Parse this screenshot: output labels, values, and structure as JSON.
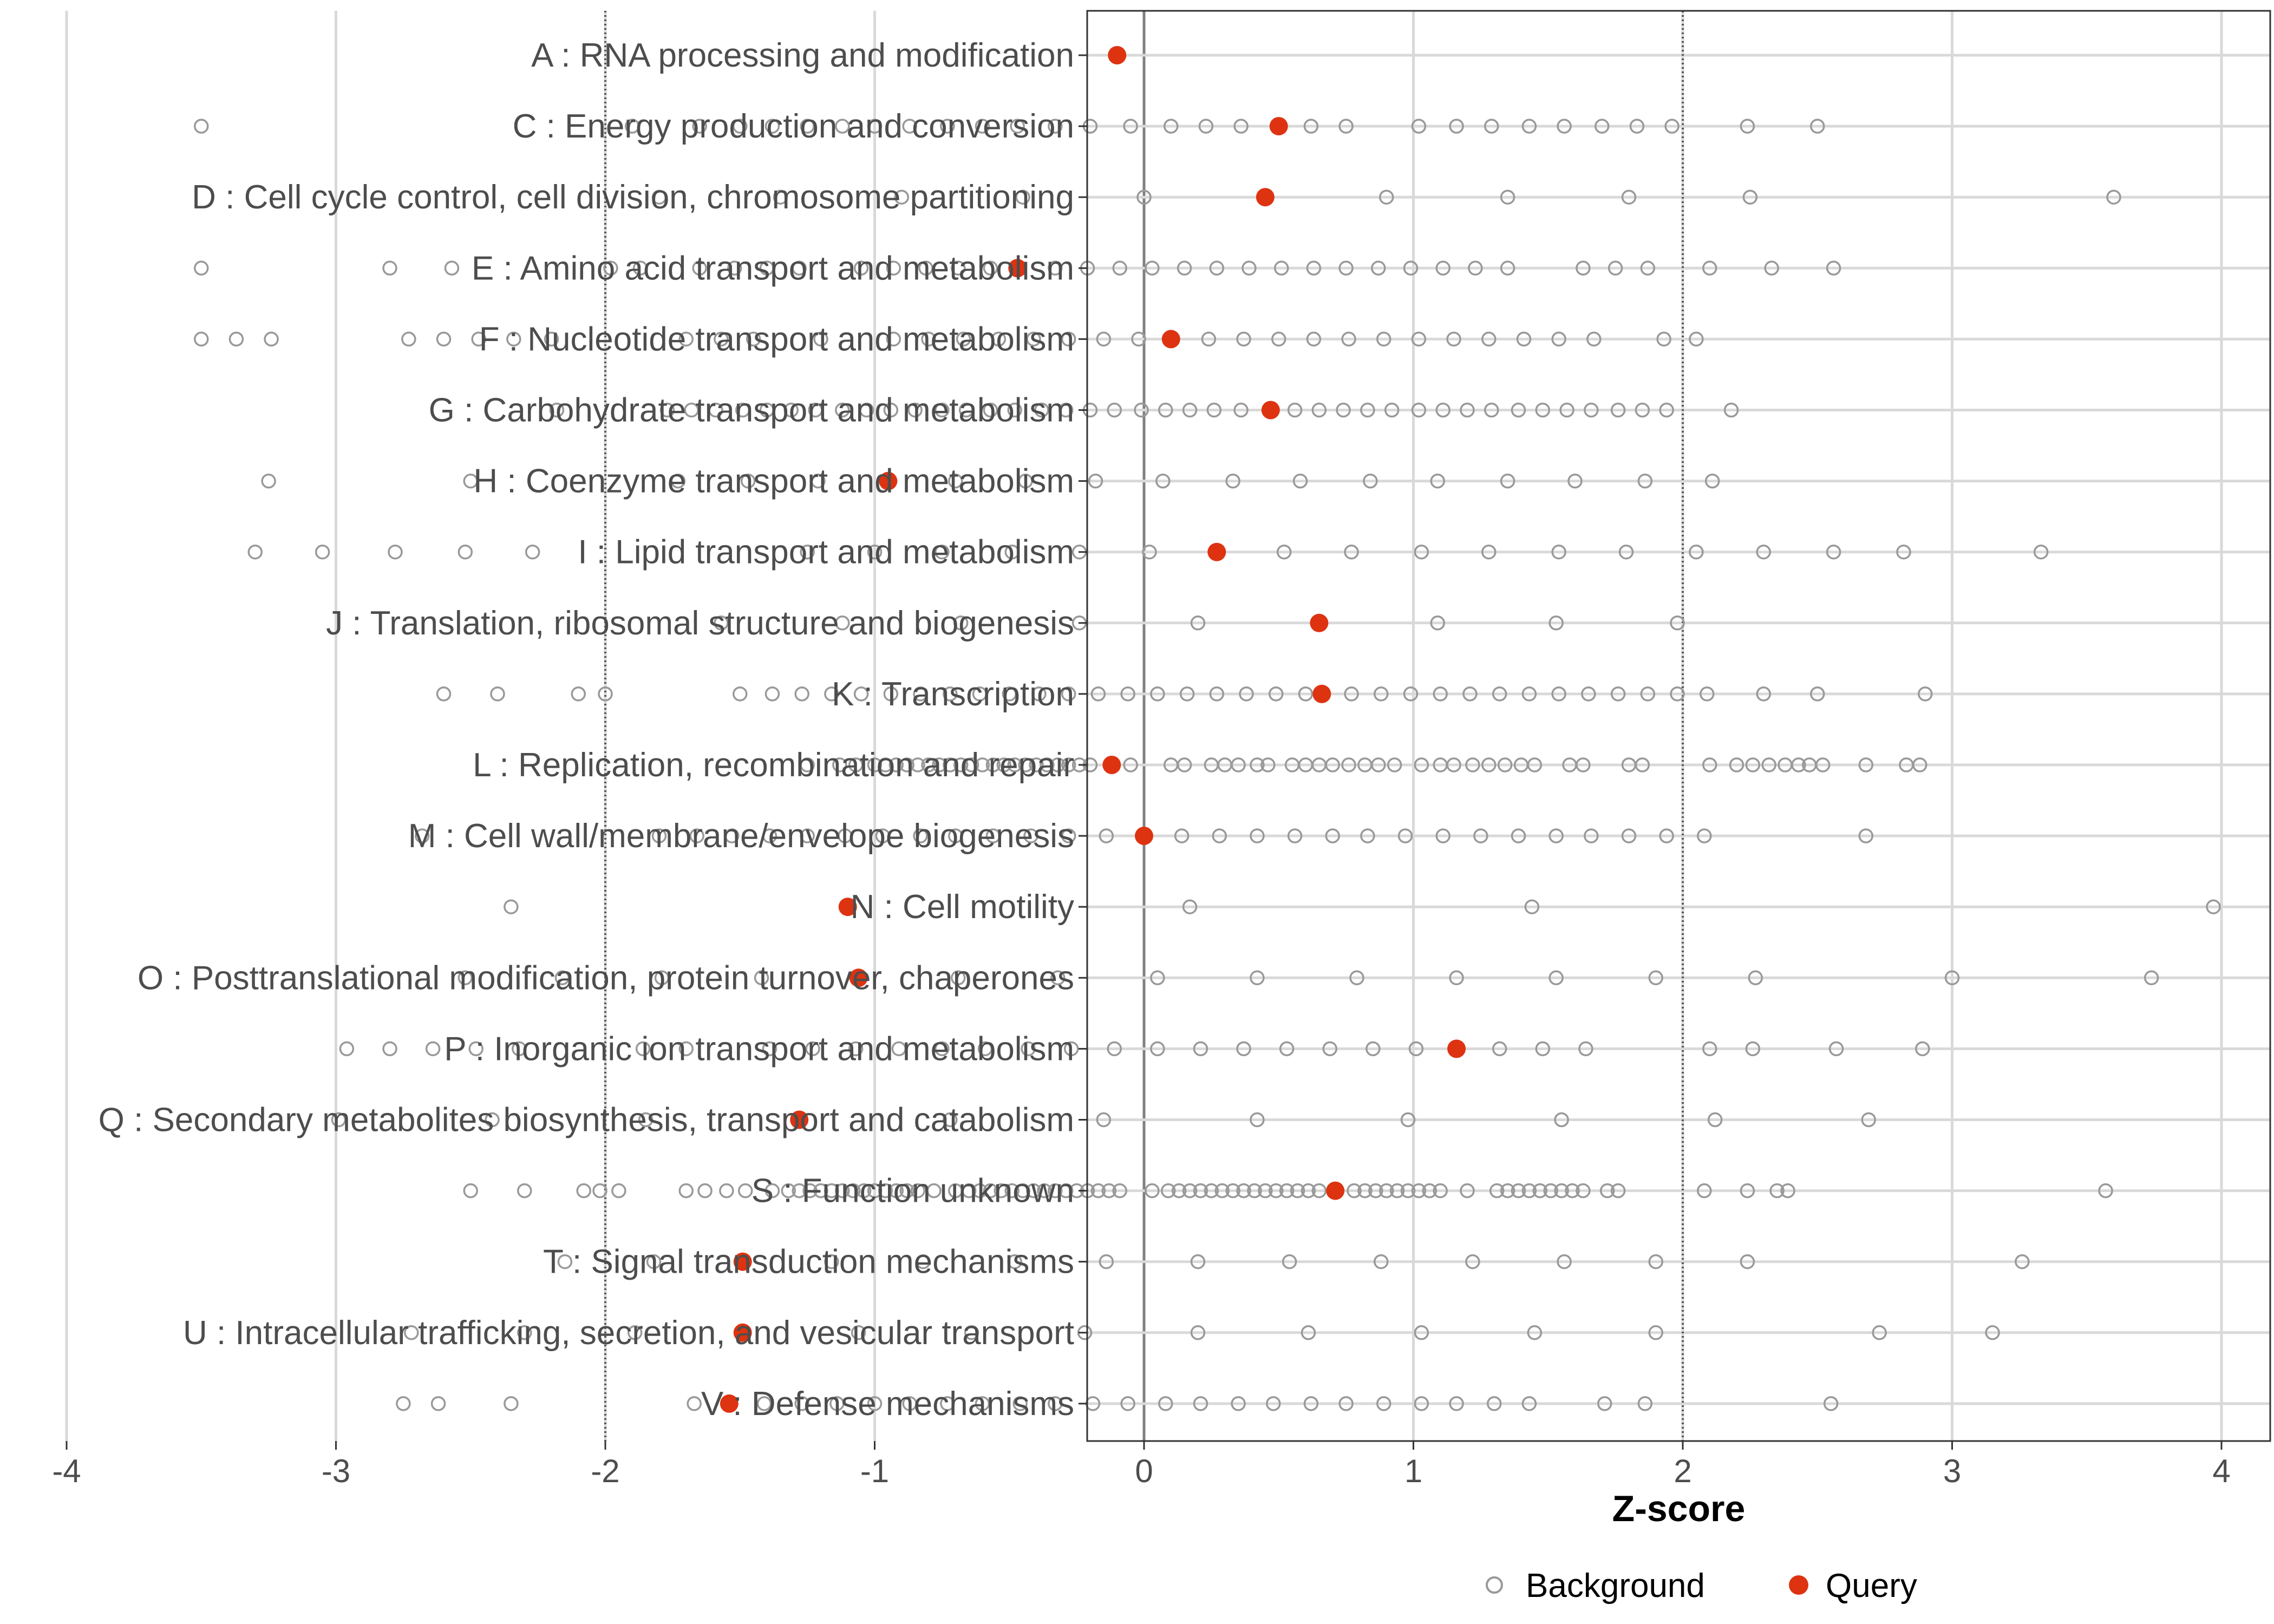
{
  "chart_data": {
    "type": "scatter",
    "title": "",
    "xlabel": "Z-score",
    "ylabel": "",
    "xlim": [
      -4.4,
      4.4
    ],
    "xticks": [
      -4,
      -3,
      -2,
      -1,
      0,
      1,
      2,
      3,
      4
    ],
    "vlines": [
      -2,
      2
    ],
    "grid": true,
    "legend_position": "bottom",
    "legend": [
      {
        "name": "Background",
        "style": "open-circle",
        "color": "#999999"
      },
      {
        "name": "Query",
        "style": "filled-circle",
        "color": "#dd3311"
      }
    ],
    "categories": [
      {
        "label": "A : RNA processing and modification",
        "query": -0.1,
        "background": []
      },
      {
        "label": "C : Energy production and conversion",
        "query": 0.5,
        "background": [
          -3.5,
          -1.9,
          -1.65,
          -1.5,
          -1.38,
          -1.25,
          -1.12,
          -1.0,
          -0.87,
          -0.73,
          -0.6,
          -0.47,
          -0.33,
          -0.2,
          -0.05,
          0.1,
          0.23,
          0.36,
          0.62,
          0.75,
          1.02,
          1.16,
          1.29,
          1.43,
          1.56,
          1.7,
          1.83,
          1.96,
          2.24,
          2.5
        ]
      },
      {
        "label": "D : Cell cycle control, cell division, chromosome partitioning",
        "query": 0.45,
        "background": [
          -1.8,
          -1.35,
          -0.9,
          -0.45,
          0.0,
          0.9,
          1.35,
          1.8,
          2.25,
          3.6
        ]
      },
      {
        "label": "E : Amino acid transport and metabolism",
        "query": -0.47,
        "background": [
          -3.5,
          -2.8,
          -2.57,
          -1.98,
          -1.87,
          -1.65,
          -1.52,
          -1.4,
          -1.28,
          -1.05,
          -0.93,
          -0.81,
          -0.69,
          -0.57,
          -0.33,
          -0.21,
          -0.09,
          0.03,
          0.15,
          0.27,
          0.39,
          0.51,
          0.63,
          0.75,
          0.87,
          0.99,
          1.11,
          1.23,
          1.35,
          1.63,
          1.75,
          1.87,
          2.1,
          2.33,
          2.56
        ]
      },
      {
        "label": "F : Nucleotide transport and metabolism",
        "query": 0.1,
        "background": [
          -3.5,
          -3.37,
          -3.24,
          -2.73,
          -2.6,
          -2.47,
          -2.34,
          -2.2,
          -1.7,
          -1.57,
          -1.45,
          -1.2,
          -0.93,
          -0.8,
          -0.67,
          -0.54,
          -0.41,
          -0.28,
          -0.15,
          -0.02,
          0.24,
          0.37,
          0.5,
          0.63,
          0.76,
          0.89,
          1.02,
          1.15,
          1.28,
          1.41,
          1.54,
          1.67,
          1.93,
          2.05
        ]
      },
      {
        "label": "G : Carbohydrate transport and metabolism",
        "query": 0.47,
        "background": [
          -2.18,
          -1.77,
          -1.68,
          -1.59,
          -1.49,
          -1.4,
          -1.31,
          -1.22,
          -1.12,
          -1.03,
          -0.94,
          -0.85,
          -0.75,
          -0.66,
          -0.57,
          -0.48,
          -0.38,
          -0.29,
          -0.2,
          -0.11,
          -0.01,
          0.08,
          0.17,
          0.26,
          0.36,
          0.56,
          0.65,
          0.74,
          0.83,
          0.92,
          1.02,
          1.11,
          1.2,
          1.29,
          1.39,
          1.48,
          1.57,
          1.66,
          1.76,
          1.85,
          1.94,
          2.18
        ]
      },
      {
        "label": "H : Coenzyme transport and metabolism",
        "query": -0.95,
        "background": [
          -3.25,
          -2.5,
          -1.73,
          -1.47,
          -1.21,
          -0.7,
          -0.44,
          -0.18,
          0.07,
          0.33,
          0.58,
          0.84,
          1.09,
          1.35,
          1.6,
          1.86,
          2.11
        ]
      },
      {
        "label": "I : Lipid transport and metabolism",
        "query": 0.27,
        "background": [
          -3.3,
          -3.05,
          -2.78,
          -2.52,
          -2.27,
          -1.25,
          -1.0,
          -0.75,
          -0.49,
          -0.24,
          0.02,
          0.52,
          0.77,
          1.03,
          1.28,
          1.54,
          1.79,
          2.05,
          2.3,
          2.56,
          2.82,
          3.33
        ]
      },
      {
        "label": "J : Translation, ribosomal structure and biogenesis",
        "query": 0.65,
        "background": [
          -1.57,
          -1.12,
          -0.68,
          -0.24,
          0.2,
          1.09,
          1.53,
          1.98
        ]
      },
      {
        "label": "K : Transcription",
        "query": 0.66,
        "background": [
          -2.6,
          -2.4,
          -2.1,
          -2.0,
          -1.5,
          -1.38,
          -1.27,
          -1.16,
          -1.05,
          -0.94,
          -0.83,
          -0.72,
          -0.61,
          -0.5,
          -0.39,
          -0.28,
          -0.17,
          -0.06,
          0.05,
          0.16,
          0.27,
          0.38,
          0.49,
          0.6,
          0.77,
          0.88,
          0.99,
          1.1,
          1.21,
          1.32,
          1.43,
          1.54,
          1.65,
          1.76,
          1.87,
          1.98,
          2.09,
          2.3,
          2.5,
          2.9
        ]
      },
      {
        "label": "L : Replication, recombination and repair",
        "query": -0.12,
        "background": [
          -1.25,
          -1.13,
          -1.07,
          -1.0,
          -0.96,
          -0.92,
          -0.88,
          -0.84,
          -0.8,
          -0.76,
          -0.72,
          -0.68,
          -0.64,
          -0.6,
          -0.56,
          -0.52,
          -0.48,
          -0.44,
          -0.4,
          -0.36,
          -0.32,
          -0.28,
          -0.24,
          -0.2,
          -0.05,
          0.1,
          0.15,
          0.25,
          0.3,
          0.35,
          0.42,
          0.46,
          0.55,
          0.6,
          0.65,
          0.7,
          0.76,
          0.82,
          0.87,
          0.93,
          1.03,
          1.1,
          1.15,
          1.22,
          1.28,
          1.34,
          1.4,
          1.45,
          1.58,
          1.63,
          1.8,
          1.85,
          2.1,
          2.2,
          2.26,
          2.32,
          2.38,
          2.43,
          2.47,
          2.52,
          2.68,
          2.83,
          2.88
        ]
      },
      {
        "label": "M : Cell wall/membrane/envelope biogenesis",
        "query": 0.0,
        "background": [
          -2.68,
          -1.8,
          -1.66,
          -1.53,
          -1.39,
          -1.25,
          -1.11,
          -0.97,
          -0.83,
          -0.7,
          -0.56,
          -0.42,
          -0.28,
          -0.14,
          0.14,
          0.28,
          0.42,
          0.56,
          0.7,
          0.83,
          0.97,
          1.11,
          1.25,
          1.39,
          1.53,
          1.66,
          1.8,
          1.94,
          2.08,
          2.68
        ]
      },
      {
        "label": "N : Cell motility",
        "query": -1.1,
        "background": [
          -2.35,
          0.17,
          1.44,
          3.97
        ]
      },
      {
        "label": "O : Posttranslational modification, protein turnover, chaperones",
        "query": -1.06,
        "background": [
          -2.52,
          -2.16,
          -1.79,
          -1.42,
          -0.69,
          -0.32,
          0.05,
          0.42,
          0.79,
          1.16,
          1.53,
          1.9,
          2.27,
          3.0,
          3.74
        ]
      },
      {
        "label": "P : Inorganic ion transport and metabolism",
        "query": 1.16,
        "background": [
          -2.96,
          -2.8,
          -2.64,
          -2.48,
          -2.32,
          -1.86,
          -1.7,
          -1.39,
          -1.23,
          -1.07,
          -0.91,
          -0.75,
          -0.59,
          -0.43,
          -0.27,
          -0.11,
          0.05,
          0.21,
          0.37,
          0.53,
          0.69,
          0.85,
          1.01,
          1.32,
          1.48,
          1.64,
          2.1,
          2.26,
          2.57,
          2.89
        ]
      },
      {
        "label": "Q : Secondary metabolites biosynthesis, transport and catabolism",
        "query": -1.28,
        "background": [
          -2.99,
          -2.42,
          -1.85,
          -0.72,
          -0.15,
          0.42,
          0.98,
          1.55,
          2.12,
          2.69
        ]
      },
      {
        "label": "S : Function unknown",
        "query": 0.71,
        "background": [
          -2.5,
          -2.3,
          -2.08,
          -2.02,
          -1.95,
          -1.7,
          -1.63,
          -1.55,
          -1.48,
          -1.38,
          -1.32,
          -1.28,
          -1.24,
          -1.2,
          -1.16,
          -1.12,
          -1.08,
          -1.04,
          -1.0,
          -0.96,
          -0.92,
          -0.88,
          -0.84,
          -0.78,
          -0.7,
          -0.65,
          -0.61,
          -0.57,
          -0.53,
          -0.49,
          -0.45,
          -0.41,
          -0.37,
          -0.33,
          -0.29,
          -0.25,
          -0.21,
          -0.17,
          -0.13,
          -0.09,
          0.03,
          0.09,
          0.13,
          0.17,
          0.21,
          0.25,
          0.29,
          0.33,
          0.37,
          0.41,
          0.45,
          0.49,
          0.53,
          0.57,
          0.61,
          0.65,
          0.78,
          0.82,
          0.86,
          0.9,
          0.94,
          0.98,
          1.02,
          1.06,
          1.1,
          1.2,
          1.31,
          1.35,
          1.39,
          1.43,
          1.47,
          1.51,
          1.55,
          1.59,
          1.63,
          1.72,
          1.76,
          2.08,
          2.24,
          2.35,
          2.39,
          3.57
        ]
      },
      {
        "label": "T : Signal transduction mechanisms",
        "query": -1.49,
        "background": [
          -2.15,
          -1.82,
          -1.16,
          -0.82,
          -0.48,
          -0.14,
          0.2,
          0.54,
          0.88,
          1.22,
          1.56,
          1.9,
          2.24,
          3.26
        ]
      },
      {
        "label": "U : Intracellular trafficking, secretion, and vesicular transport",
        "query": -1.49,
        "background": [
          -2.72,
          -2.3,
          -1.89,
          -1.06,
          -0.64,
          -0.22,
          0.2,
          0.61,
          1.03,
          1.45,
          1.9,
          2.73,
          3.15
        ]
      },
      {
        "label": "V : Defense mechanisms",
        "query": -1.54,
        "background": [
          -2.75,
          -2.62,
          -2.35,
          -1.67,
          -1.41,
          -1.27,
          -1.14,
          -1.0,
          -0.87,
          -0.73,
          -0.6,
          -0.46,
          -0.33,
          -0.19,
          -0.06,
          0.08,
          0.21,
          0.35,
          0.48,
          0.62,
          0.75,
          0.89,
          1.03,
          1.16,
          1.3,
          1.43,
          1.71,
          1.86,
          2.55
        ]
      }
    ]
  }
}
